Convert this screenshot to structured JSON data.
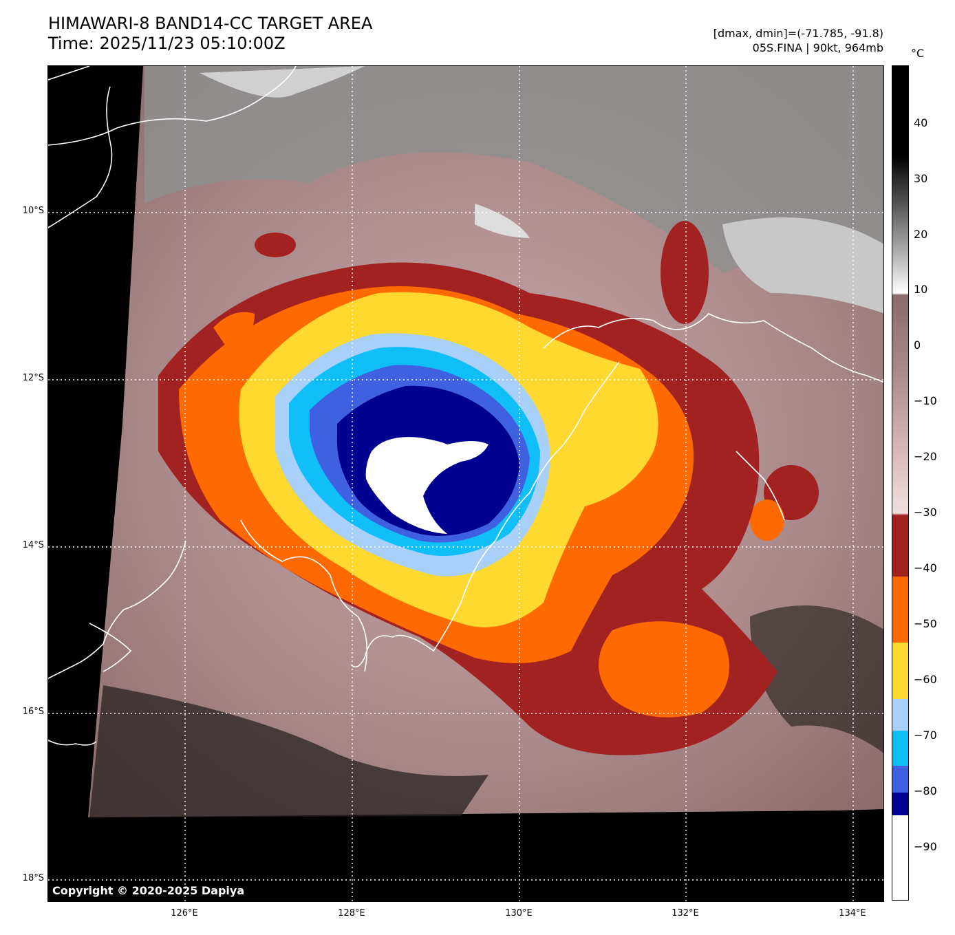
{
  "header": {
    "title_line1": "HIMAWARI-8 BAND14-CC TARGET AREA",
    "title_line2": "Time: 2025/11/23 05:10:00Z",
    "info_line1": "[dmax, dmin]=(-71.785, -91.8)",
    "info_line2": "05S.FINA | 90kt, 964mb"
  },
  "map": {
    "copyright": "Copyright © 2020-2025 Dapiya",
    "lat_labels": [
      "10°S",
      "12°S",
      "14°S",
      "16°S",
      "18°S"
    ],
    "lon_labels": [
      "126°E",
      "128°E",
      "130°E",
      "132°E",
      "134°E"
    ]
  },
  "colorbar": {
    "unit": "°C",
    "labels": [
      "40",
      "30",
      "20",
      "10",
      "0",
      "−10",
      "−20",
      "−30",
      "−40",
      "−50",
      "−60",
      "−70",
      "−80",
      "−90"
    ],
    "colors": {
      "land_black": "#000000",
      "cloud_grey": "#a8a8a8",
      "warm_brown": "#8a6a6a",
      "pink": "#d8b8b8",
      "dark_red": "#a22222",
      "orange": "#ff6a00",
      "yellow": "#ffd830",
      "light_blue": "#a8d0f8",
      "cyan": "#10bff8",
      "blue": "#3f60e0",
      "navy": "#000090",
      "white": "#ffffff"
    }
  }
}
